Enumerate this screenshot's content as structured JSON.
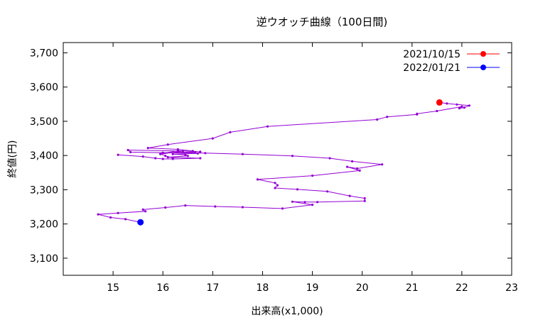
{
  "chart_data": {
    "type": "line",
    "title": "逆ウオッチ曲線（100日間)",
    "xlabel": "出来高(x1,000)",
    "ylabel": "終値(円)",
    "xlim": [
      14,
      23
    ],
    "ylim": [
      3050,
      3730
    ],
    "xticks": [
      15,
      16,
      17,
      18,
      19,
      20,
      21,
      22,
      23
    ],
    "xtick_labels": [
      "15",
      "16",
      "17",
      "18",
      "19",
      "20",
      "21",
      "22",
      "23"
    ],
    "yticks": [
      3100,
      3200,
      3300,
      3400,
      3500,
      3600,
      3700
    ],
    "ytick_labels": [
      "3,100",
      "3,200",
      "3,300",
      "3,400",
      "3,500",
      "3,600",
      "3,700"
    ],
    "grid": false,
    "legend_position": "top-right",
    "line_color": "#9400d3",
    "series": [
      {
        "type": "line",
        "points": [
          [
            21.55,
            3555
          ],
          [
            21.7,
            3552
          ],
          [
            21.9,
            3549
          ],
          [
            22.15,
            3546
          ],
          [
            22.05,
            3540
          ],
          [
            21.95,
            3538
          ],
          [
            22.0,
            3543
          ],
          [
            21.5,
            3530
          ],
          [
            21.1,
            3522
          ],
          [
            21.1,
            3520
          ],
          [
            20.5,
            3513
          ],
          [
            20.3,
            3505
          ],
          [
            18.1,
            3485
          ],
          [
            17.35,
            3468
          ],
          [
            17.0,
            3450
          ],
          [
            16.1,
            3432
          ],
          [
            15.7,
            3422
          ],
          [
            16.3,
            3418
          ],
          [
            16.6,
            3413
          ],
          [
            16.65,
            3410
          ],
          [
            16.0,
            3408
          ],
          [
            15.95,
            3404
          ],
          [
            16.4,
            3413
          ],
          [
            15.3,
            3416
          ],
          [
            15.35,
            3410
          ],
          [
            16.0,
            3408
          ],
          [
            16.85,
            3407
          ],
          [
            17.6,
            3404
          ],
          [
            18.6,
            3399
          ],
          [
            19.35,
            3392
          ],
          [
            19.8,
            3383
          ],
          [
            20.4,
            3374
          ],
          [
            19.9,
            3362
          ],
          [
            19.7,
            3367
          ],
          [
            19.95,
            3356
          ],
          [
            19.0,
            3341
          ],
          [
            17.9,
            3330
          ],
          [
            18.25,
            3320
          ],
          [
            18.3,
            3313
          ],
          [
            18.25,
            3305
          ],
          [
            18.7,
            3301
          ],
          [
            19.3,
            3295
          ],
          [
            19.75,
            3282
          ],
          [
            20.05,
            3275
          ],
          [
            20.05,
            3267
          ],
          [
            19.1,
            3264
          ],
          [
            18.85,
            3264
          ],
          [
            18.6,
            3265
          ],
          [
            19.0,
            3256
          ],
          [
            18.4,
            3245
          ],
          [
            17.6,
            3249
          ],
          [
            17.05,
            3251
          ],
          [
            16.45,
            3254
          ],
          [
            16.05,
            3248
          ],
          [
            15.6,
            3242
          ],
          [
            15.65,
            3237
          ],
          [
            15.1,
            3232
          ],
          [
            14.7,
            3228
          ],
          [
            14.95,
            3219
          ],
          [
            15.25,
            3214
          ],
          [
            15.55,
            3205
          ]
        ]
      },
      {
        "type": "line",
        "points": [
          [
            15.1,
            3402
          ],
          [
            15.6,
            3397
          ],
          [
            15.85,
            3392
          ],
          [
            16.0,
            3390
          ],
          [
            16.2,
            3390
          ],
          [
            16.75,
            3392
          ],
          [
            16.1,
            3395
          ],
          [
            16.5,
            3399
          ],
          [
            16.45,
            3402
          ],
          [
            16.2,
            3404
          ],
          [
            16.7,
            3406
          ],
          [
            16.75,
            3411
          ],
          [
            16.3,
            3414
          ],
          [
            15.95,
            3405
          ],
          [
            16.05,
            3399
          ],
          [
            16.2,
            3393
          ]
        ]
      }
    ],
    "highlights": [
      {
        "label": "2021/10/15",
        "x": 21.55,
        "y": 3555,
        "color": "#ff0000"
      },
      {
        "label": "2022/01/21",
        "x": 15.55,
        "y": 3205,
        "color": "#0000ff"
      }
    ]
  }
}
